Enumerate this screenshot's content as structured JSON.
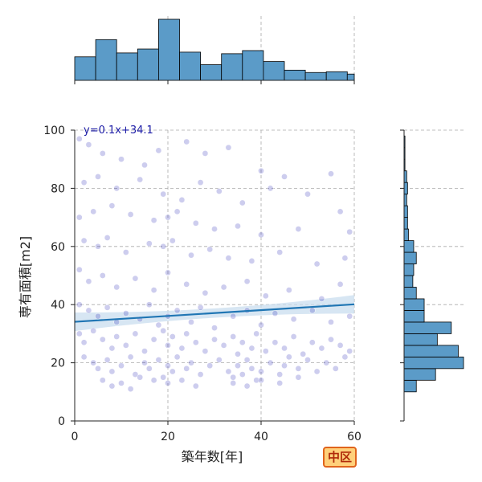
{
  "chart_data": {
    "type": "scatter",
    "xlabel": "築年数[年]",
    "ylabel": "専有面積[m2]",
    "xlim": [
      0,
      60
    ],
    "ylim": [
      0,
      100
    ],
    "x_ticks": [
      "0",
      "20",
      "40",
      "60"
    ],
    "y_ticks": [
      "0",
      "20",
      "40",
      "60",
      "80",
      "100"
    ],
    "grid": true,
    "regression": {
      "label": "y=0.1x+34.1",
      "slope": 0.1,
      "intercept": 34.1,
      "x_range": [
        0,
        60
      ]
    },
    "scatter_sample": [
      [
        1,
        97
      ],
      [
        3,
        95
      ],
      [
        6,
        92
      ],
      [
        10,
        90
      ],
      [
        15,
        88
      ],
      [
        18,
        93
      ],
      [
        24,
        96
      ],
      [
        28,
        92
      ],
      [
        33,
        94
      ],
      [
        40,
        86
      ],
      [
        45,
        84
      ],
      [
        55,
        85
      ],
      [
        2,
        82
      ],
      [
        5,
        84
      ],
      [
        9,
        80
      ],
      [
        14,
        83
      ],
      [
        19,
        78
      ],
      [
        23,
        76
      ],
      [
        27,
        82
      ],
      [
        31,
        79
      ],
      [
        36,
        75
      ],
      [
        42,
        80
      ],
      [
        50,
        78
      ],
      [
        57,
        72
      ],
      [
        1,
        70
      ],
      [
        4,
        72
      ],
      [
        8,
        74
      ],
      [
        12,
        71
      ],
      [
        17,
        69
      ],
      [
        20,
        70
      ],
      [
        22,
        72
      ],
      [
        26,
        68
      ],
      [
        30,
        66
      ],
      [
        35,
        67
      ],
      [
        40,
        64
      ],
      [
        48,
        66
      ],
      [
        59,
        65
      ],
      [
        2,
        62
      ],
      [
        5,
        60
      ],
      [
        7,
        63
      ],
      [
        11,
        58
      ],
      [
        16,
        61
      ],
      [
        19,
        60
      ],
      [
        21,
        62
      ],
      [
        25,
        57
      ],
      [
        29,
        59
      ],
      [
        33,
        56
      ],
      [
        38,
        55
      ],
      [
        44,
        58
      ],
      [
        52,
        54
      ],
      [
        58,
        56
      ],
      [
        1,
        52
      ],
      [
        3,
        48
      ],
      [
        6,
        50
      ],
      [
        9,
        46
      ],
      [
        13,
        49
      ],
      [
        17,
        45
      ],
      [
        20,
        51
      ],
      [
        24,
        47
      ],
      [
        28,
        44
      ],
      [
        32,
        46
      ],
      [
        37,
        48
      ],
      [
        41,
        43
      ],
      [
        46,
        45
      ],
      [
        53,
        42
      ],
      [
        57,
        47
      ],
      [
        1,
        40
      ],
      [
        3,
        38
      ],
      [
        5,
        36
      ],
      [
        7,
        39
      ],
      [
        9,
        34
      ],
      [
        11,
        37
      ],
      [
        14,
        35
      ],
      [
        16,
        40
      ],
      [
        18,
        33
      ],
      [
        20,
        36
      ],
      [
        22,
        38
      ],
      [
        25,
        34
      ],
      [
        27,
        39
      ],
      [
        30,
        32
      ],
      [
        34,
        36
      ],
      [
        37,
        38
      ],
      [
        40,
        33
      ],
      [
        43,
        37
      ],
      [
        47,
        35
      ],
      [
        51,
        38
      ],
      [
        55,
        34
      ],
      [
        59,
        36
      ],
      [
        1,
        30
      ],
      [
        2,
        27
      ],
      [
        4,
        31
      ],
      [
        6,
        28
      ],
      [
        8,
        25
      ],
      [
        9,
        29
      ],
      [
        11,
        26
      ],
      [
        13,
        30
      ],
      [
        15,
        24
      ],
      [
        17,
        28
      ],
      [
        19,
        31
      ],
      [
        20,
        26
      ],
      [
        21,
        29
      ],
      [
        23,
        25
      ],
      [
        24,
        30
      ],
      [
        26,
        27
      ],
      [
        28,
        24
      ],
      [
        30,
        28
      ],
      [
        32,
        26
      ],
      [
        34,
        29
      ],
      [
        35,
        23
      ],
      [
        36,
        27
      ],
      [
        38,
        25
      ],
      [
        39,
        30
      ],
      [
        41,
        24
      ],
      [
        43,
        27
      ],
      [
        45,
        25
      ],
      [
        47,
        29
      ],
      [
        49,
        23
      ],
      [
        51,
        27
      ],
      [
        53,
        25
      ],
      [
        55,
        28
      ],
      [
        57,
        26
      ],
      [
        59,
        24
      ],
      [
        2,
        22
      ],
      [
        4,
        20
      ],
      [
        5,
        18
      ],
      [
        7,
        21
      ],
      [
        8,
        17
      ],
      [
        10,
        19
      ],
      [
        12,
        22
      ],
      [
        13,
        16
      ],
      [
        15,
        20
      ],
      [
        16,
        18
      ],
      [
        18,
        21
      ],
      [
        19,
        15
      ],
      [
        20,
        19
      ],
      [
        21,
        17
      ],
      [
        22,
        22
      ],
      [
        24,
        18
      ],
      [
        25,
        20
      ],
      [
        27,
        16
      ],
      [
        29,
        19
      ],
      [
        31,
        21
      ],
      [
        33,
        17
      ],
      [
        34,
        15
      ],
      [
        35,
        19
      ],
      [
        36,
        16
      ],
      [
        37,
        21
      ],
      [
        38,
        18
      ],
      [
        39,
        14
      ],
      [
        40,
        17
      ],
      [
        42,
        20
      ],
      [
        44,
        16
      ],
      [
        45,
        19
      ],
      [
        46,
        22
      ],
      [
        48,
        18
      ],
      [
        50,
        21
      ],
      [
        52,
        17
      ],
      [
        54,
        20
      ],
      [
        56,
        18
      ],
      [
        58,
        22
      ],
      [
        6,
        14
      ],
      [
        8,
        12
      ],
      [
        10,
        13
      ],
      [
        12,
        11
      ],
      [
        14,
        15
      ],
      [
        17,
        14
      ],
      [
        20,
        13
      ],
      [
        23,
        14
      ],
      [
        26,
        12
      ],
      [
        34,
        13
      ],
      [
        37,
        12
      ],
      [
        40,
        14
      ],
      [
        44,
        13
      ],
      [
        48,
        15
      ]
    ],
    "x_hist": {
      "bin_edges": [
        0,
        4.5,
        9,
        13.5,
        18,
        22.5,
        27,
        31.5,
        36,
        40.5,
        45,
        49.5,
        54,
        58.5,
        60
      ],
      "counts": [
        30,
        52,
        35,
        40,
        78,
        36,
        20,
        34,
        38,
        24,
        13,
        10,
        11,
        8
      ]
    },
    "y_hist": {
      "bin_edges": [
        10,
        14,
        18,
        22,
        26,
        30,
        34,
        38,
        42,
        46,
        50,
        54,
        58,
        62,
        66,
        70,
        74,
        78,
        82,
        86,
        90,
        94,
        98,
        100
      ],
      "counts": [
        14,
        36,
        68,
        62,
        38,
        54,
        23,
        23,
        14,
        10,
        11,
        14,
        11,
        5,
        4,
        4,
        3,
        4,
        3,
        1,
        1,
        1,
        0
      ]
    }
  },
  "badge": "中区",
  "colors": {
    "hist_fill": "#5b9bc8",
    "hist_edge": "#000000",
    "scatter": "#1a1ab0",
    "regression_line": "#2076b4",
    "confidence_band": "#c9ddef",
    "grid": "#aaaaaa",
    "equation": "#1a1aa6"
  }
}
